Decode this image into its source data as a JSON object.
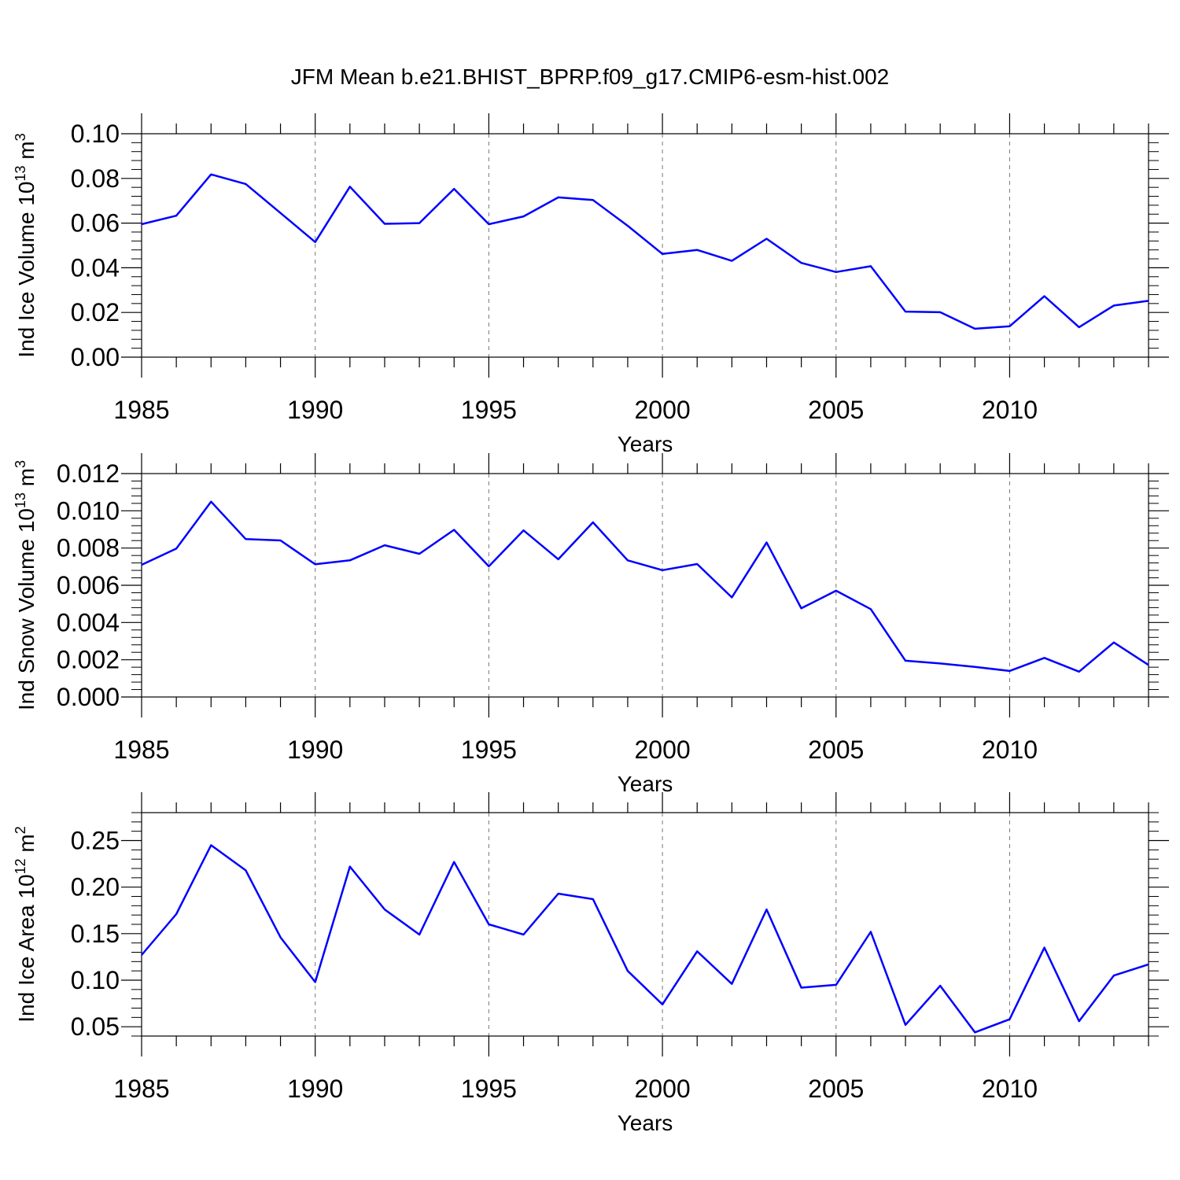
{
  "title": "JFM Mean b.e21.BHIST_BPRP.f09_g17.CMIP6-esm-hist.002",
  "colors": {
    "line": "#0000ff",
    "axis": "#000000",
    "grid": "#777777"
  },
  "chart_data": [
    {
      "type": "line",
      "ylabel": "Ind Ice Volume 10",
      "ylabel_exp": "13",
      "ylabel_unit": " m",
      "ylabel_unit_exp": "3",
      "xlabel": "Years",
      "xlim": [
        1985,
        2014
      ],
      "ylim": [
        0.0,
        0.1
      ],
      "xticks": [
        1985,
        1990,
        1995,
        2000,
        2005,
        2010
      ],
      "xtick_labels": [
        "1985",
        "1990",
        "1995",
        "2000",
        "2005",
        "2010"
      ],
      "yticks": [
        0.0,
        0.02,
        0.04,
        0.06,
        0.08,
        0.1
      ],
      "ytick_labels": [
        "0.00",
        "0.02",
        "0.04",
        "0.06",
        "0.08",
        "0.10"
      ],
      "x": [
        1985,
        1986,
        1987,
        1988,
        1989,
        1990,
        1991,
        1992,
        1993,
        1994,
        1995,
        1996,
        1997,
        1998,
        1999,
        2000,
        2001,
        2002,
        2003,
        2004,
        2005,
        2006,
        2007,
        2008,
        2009,
        2010,
        2011,
        2012,
        2013,
        2014
      ],
      "values": [
        0.0595,
        0.0633,
        0.0818,
        0.0775,
        0.0645,
        0.0515,
        0.0763,
        0.0597,
        0.06,
        0.0753,
        0.0595,
        0.063,
        0.0715,
        0.0703,
        0.0588,
        0.0462,
        0.048,
        0.0431,
        0.053,
        0.0422,
        0.0381,
        0.0407,
        0.0204,
        0.0201,
        0.0127,
        0.0138,
        0.0273,
        0.0134,
        0.0231,
        0.0252
      ]
    },
    {
      "type": "line",
      "ylabel": "Ind Snow Volume 10",
      "ylabel_exp": "13",
      "ylabel_unit": " m",
      "ylabel_unit_exp": "3",
      "xlabel": "Years",
      "xlim": [
        1985,
        2014
      ],
      "ylim": [
        0.0,
        0.012
      ],
      "xticks": [
        1985,
        1990,
        1995,
        2000,
        2005,
        2010
      ],
      "xtick_labels": [
        "1985",
        "1990",
        "1995",
        "2000",
        "2005",
        "2010"
      ],
      "yticks": [
        0.0,
        0.002,
        0.004,
        0.006,
        0.008,
        0.01,
        0.012
      ],
      "ytick_labels": [
        "0.000",
        "0.002",
        "0.004",
        "0.006",
        "0.008",
        "0.010",
        "0.012"
      ],
      "x": [
        1985,
        1986,
        1987,
        1988,
        1989,
        1990,
        1991,
        1992,
        1993,
        1994,
        1995,
        1996,
        1997,
        1998,
        1999,
        2000,
        2001,
        2002,
        2003,
        2004,
        2005,
        2006,
        2007,
        2008,
        2009,
        2010,
        2011,
        2012,
        2013,
        2014
      ],
      "values": [
        0.0071,
        0.00797,
        0.01049,
        0.00848,
        0.00841,
        0.00713,
        0.00734,
        0.00815,
        0.00769,
        0.00898,
        0.00702,
        0.00895,
        0.0074,
        0.00938,
        0.00734,
        0.00681,
        0.00714,
        0.00535,
        0.0083,
        0.00476,
        0.00571,
        0.00472,
        0.00195,
        0.0018,
        0.00162,
        0.0014,
        0.0021,
        0.00136,
        0.00293,
        0.00172
      ]
    },
    {
      "type": "line",
      "ylabel": "Ind Ice Area 10",
      "ylabel_exp": "12",
      "ylabel_unit": " m",
      "ylabel_unit_exp": "2",
      "xlabel": "Years",
      "xlim": [
        1985,
        2014
      ],
      "ylim": [
        0.04,
        0.28
      ],
      "xticks": [
        1985,
        1990,
        1995,
        2000,
        2005,
        2010
      ],
      "xtick_labels": [
        "1985",
        "1990",
        "1995",
        "2000",
        "2005",
        "2010"
      ],
      "yticks": [
        0.05,
        0.1,
        0.15,
        0.2,
        0.25
      ],
      "ytick_labels": [
        "0.05",
        "0.10",
        "0.15",
        "0.20",
        "0.25"
      ],
      "x": [
        1985,
        1986,
        1987,
        1988,
        1989,
        1990,
        1991,
        1992,
        1993,
        1994,
        1995,
        1996,
        1997,
        1998,
        1999,
        2000,
        2001,
        2002,
        2003,
        2004,
        2005,
        2006,
        2007,
        2008,
        2009,
        2010,
        2011,
        2012,
        2013,
        2014
      ],
      "values": [
        0.127,
        0.171,
        0.245,
        0.218,
        0.146,
        0.098,
        0.222,
        0.176,
        0.149,
        0.227,
        0.16,
        0.149,
        0.193,
        0.187,
        0.11,
        0.074,
        0.131,
        0.096,
        0.176,
        0.092,
        0.095,
        0.152,
        0.052,
        0.094,
        0.044,
        0.058,
        0.135,
        0.056,
        0.105,
        0.117
      ]
    }
  ]
}
